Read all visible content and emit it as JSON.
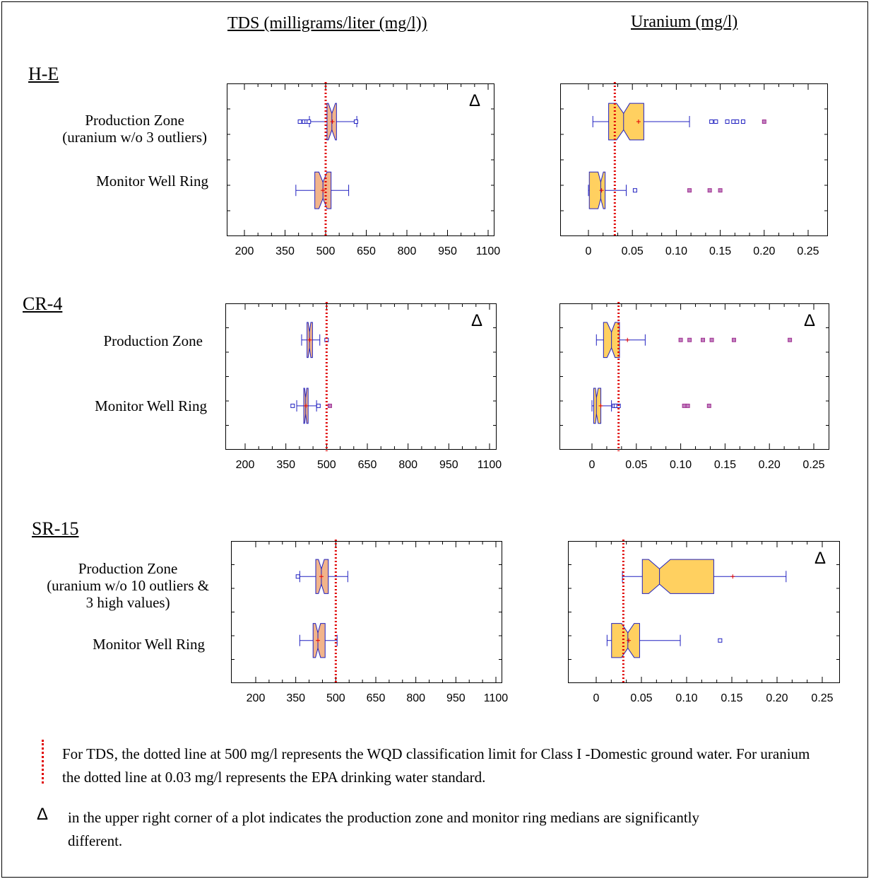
{
  "headers": {
    "tds": "TDS (milligrams/liter (mg/l))",
    "uranium": "Uranium (mg/l)"
  },
  "delta_symbol": "Δ",
  "sites": [
    {
      "name": "H-E",
      "prod_label": "Production Zone\n(uranium w/o 3 outliers)",
      "mon_label": "Monitor Well Ring"
    },
    {
      "name": "CR-4",
      "prod_label": "Production Zone",
      "mon_label": "Monitor Well Ring"
    },
    {
      "name": "SR-15",
      "prod_label": "Production Zone\n(uranium w/o 10 outliers &\n3 high values)",
      "mon_label": "Monitor Well Ring"
    }
  ],
  "legend": {
    "dotted_line_text": "For TDS, the dotted line at 500 mg/l represents the WQD classification limit for Class I -Domestic ground water.  For uranium the dotted line at 0.03 mg/l represents the EPA drinking water standard.",
    "delta_text": "in the upper right corner of a plot indicates the production zone and monitor ring medians are significantly different."
  },
  "colors": {
    "tds_box_fill": "#f2b48a",
    "uranium_box_fill": "#ffd060",
    "box_stroke": "#2020c0",
    "reference_line": "#e00000",
    "mean_marker": "#e00000",
    "outlier": "#2020c0",
    "far_outlier": "#a03090"
  },
  "chart_data": [
    {
      "type": "box",
      "site": "H-E",
      "panel": "TDS",
      "xlim": [
        200,
        1100
      ],
      "ticks": [
        "200",
        "350",
        "500",
        "650",
        "800",
        "950",
        "1100"
      ],
      "reference_line": 500,
      "significant": true,
      "series": [
        {
          "name": "Production Zone",
          "min": 440,
          "q1": 505,
          "median": 523,
          "q3": 540,
          "max": 615,
          "mean": 525,
          "notch": [
            510,
            536
          ],
          "outliers": [
            405,
            420,
            430,
            438,
            612
          ]
        },
        {
          "name": "Monitor Well Ring",
          "min": 390,
          "q1": 460,
          "median": 490,
          "q3": 520,
          "max": 585,
          "mean": 490,
          "notch": [
            475,
            505
          ],
          "outliers": []
        }
      ]
    },
    {
      "type": "box",
      "site": "H-E",
      "panel": "Uranium",
      "xlim": [
        0,
        0.25
      ],
      "ticks": [
        "0",
        "0.05",
        "0.10",
        "0.15",
        "0.20",
        "0.25"
      ],
      "reference_line": 0.03,
      "significant": false,
      "series": [
        {
          "name": "Production Zone",
          "min": 0.005,
          "q1": 0.023,
          "median": 0.04,
          "q3": 0.063,
          "max": 0.115,
          "mean": 0.057,
          "notch": [
            0.032,
            0.047
          ],
          "outliers": [
            0.14,
            0.145,
            0.158,
            0.165,
            0.169,
            0.176
          ],
          "far_outliers": [
            0.2
          ]
        },
        {
          "name": "Monitor Well Ring",
          "min": 0,
          "q1": 0.001,
          "median": 0.014,
          "q3": 0.019,
          "max": 0.043,
          "mean": 0.015,
          "notch": [
            0.011,
            0.017
          ],
          "outliers": [
            0.053
          ],
          "far_outliers": [
            0.115,
            0.138,
            0.15
          ]
        }
      ]
    },
    {
      "type": "box",
      "site": "CR-4",
      "panel": "TDS",
      "xlim": [
        200,
        1100
      ],
      "ticks": [
        "200",
        "350",
        "500",
        "650",
        "800",
        "950",
        "1100"
      ],
      "reference_line": 500,
      "significant": true,
      "series": [
        {
          "name": "Production Zone",
          "min": 408,
          "q1": 428,
          "median": 437,
          "q3": 448,
          "max": 475,
          "mean": 438,
          "notch": [
            432,
            442
          ],
          "outliers": [
            500
          ]
        },
        {
          "name": "Monitor Well Ring",
          "min": 390,
          "q1": 416,
          "median": 423,
          "q3": 432,
          "max": 463,
          "mean": 424,
          "notch": [
            419,
            427
          ],
          "outliers": [
            375,
            470
          ],
          "far_outliers": [
            512
          ]
        }
      ]
    },
    {
      "type": "box",
      "site": "CR-4",
      "panel": "Uranium",
      "xlim": [
        0,
        0.25
      ],
      "ticks": [
        "0",
        "0.05",
        "0.10",
        "0.15",
        "0.20",
        "0.25"
      ],
      "reference_line": 0.03,
      "significant": true,
      "series": [
        {
          "name": "Production Zone",
          "min": 0.005,
          "q1": 0.013,
          "median": 0.022,
          "q3": 0.031,
          "max": 0.06,
          "mean": 0.04,
          "notch": [
            0.017,
            0.026
          ],
          "outliers": [],
          "far_outliers": [
            0.1,
            0.11,
            0.125,
            0.135,
            0.16,
            0.223
          ]
        },
        {
          "name": "Monitor Well Ring",
          "min": 0,
          "q1": 0.002,
          "median": 0.005,
          "q3": 0.01,
          "max": 0.022,
          "mean": 0.01,
          "notch": [
            0.004,
            0.007
          ],
          "outliers": [
            0.025,
            0.027,
            0.03
          ],
          "far_outliers": [
            0.104,
            0.108,
            0.132
          ]
        }
      ]
    },
    {
      "type": "box",
      "site": "SR-15",
      "panel": "TDS",
      "xlim": [
        200,
        1100
      ],
      "ticks": [
        "200",
        "350",
        "500",
        "650",
        "800",
        "950",
        "1100"
      ],
      "reference_line": 500,
      "significant": false,
      "series": [
        {
          "name": "Production Zone",
          "min": 365,
          "q1": 425,
          "median": 446,
          "q3": 472,
          "max": 545,
          "mean": 446,
          "notch": [
            435,
            457
          ],
          "outliers": [
            358
          ]
        },
        {
          "name": "Monitor Well Ring",
          "min": 365,
          "q1": 415,
          "median": 433,
          "q3": 460,
          "max": 505,
          "mean": 433,
          "notch": [
            424,
            443
          ],
          "outliers": []
        }
      ]
    },
    {
      "type": "box",
      "site": "SR-15",
      "panel": "Uranium",
      "xlim": [
        0,
        0.25
      ],
      "ticks": [
        "0",
        "0.05",
        "0.10",
        "0.15",
        "0.20",
        "0.25"
      ],
      "reference_line": 0.03,
      "significant": true,
      "series": [
        {
          "name": "Production Zone",
          "min": 0.029,
          "q1": 0.051,
          "median": 0.07,
          "q3": 0.13,
          "max": 0.21,
          "mean": 0.151,
          "notch": [
            0.058,
            0.082
          ],
          "outliers": []
        },
        {
          "name": "Monitor Well Ring",
          "min": 0.012,
          "q1": 0.017,
          "median": 0.035,
          "q3": 0.048,
          "max": 0.093,
          "mean": 0.036,
          "notch": [
            0.028,
            0.042
          ],
          "outliers": [
            0.137
          ]
        }
      ]
    }
  ]
}
